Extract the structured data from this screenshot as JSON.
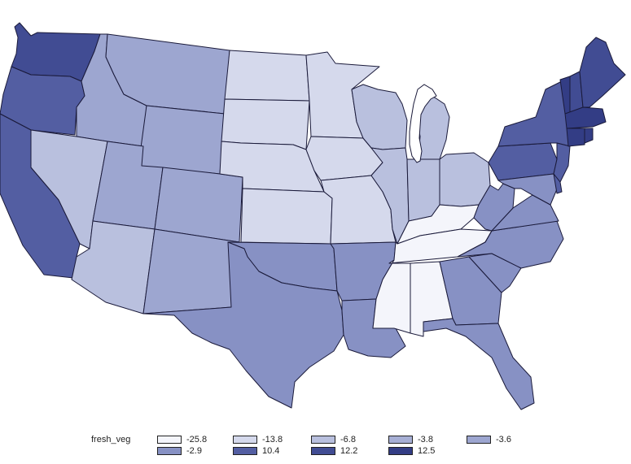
{
  "colors": {
    "background": "#ffffff",
    "outline": "#1a1a3a",
    "lake": "#ffffff"
  },
  "map": {
    "variable": "fresh_veg",
    "states": [
      {
        "code": "WA",
        "bin": "12.2"
      },
      {
        "code": "OR",
        "bin": "10.4"
      },
      {
        "code": "CA",
        "bin": "10.4"
      },
      {
        "code": "ID",
        "bin": "-3.6"
      },
      {
        "code": "NV",
        "bin": "-6.8"
      },
      {
        "code": "MT",
        "bin": "-3.6"
      },
      {
        "code": "WY",
        "bin": "-3.6"
      },
      {
        "code": "UT",
        "bin": "-3.6"
      },
      {
        "code": "AZ",
        "bin": "-6.8"
      },
      {
        "code": "CO",
        "bin": "-3.6"
      },
      {
        "code": "NM",
        "bin": "-3.6"
      },
      {
        "code": "ND",
        "bin": "-13.8"
      },
      {
        "code": "SD",
        "bin": "-13.8"
      },
      {
        "code": "NE",
        "bin": "-13.8"
      },
      {
        "code": "KS",
        "bin": "-13.8"
      },
      {
        "code": "OK",
        "bin": "-2.9"
      },
      {
        "code": "TX",
        "bin": "-2.9"
      },
      {
        "code": "MN",
        "bin": "-13.8"
      },
      {
        "code": "IA",
        "bin": "-13.8"
      },
      {
        "code": "MO",
        "bin": "-13.8"
      },
      {
        "code": "AR",
        "bin": "-2.9"
      },
      {
        "code": "LA",
        "bin": "-2.9"
      },
      {
        "code": "WI",
        "bin": "-6.8"
      },
      {
        "code": "IL",
        "bin": "-6.8"
      },
      {
        "code": "MI",
        "bin": "-6.8"
      },
      {
        "code": "IN",
        "bin": "-6.8"
      },
      {
        "code": "OH",
        "bin": "-6.8"
      },
      {
        "code": "KY",
        "bin": "-25.8"
      },
      {
        "code": "TN",
        "bin": "-25.8"
      },
      {
        "code": "MS",
        "bin": "-25.8"
      },
      {
        "code": "AL",
        "bin": "-25.8"
      },
      {
        "code": "GA",
        "bin": "-2.9"
      },
      {
        "code": "FL",
        "bin": "-2.9"
      },
      {
        "code": "SC",
        "bin": "-2.9"
      },
      {
        "code": "NC",
        "bin": "-2.9"
      },
      {
        "code": "VA",
        "bin": "-2.9"
      },
      {
        "code": "WV",
        "bin": "-2.9"
      },
      {
        "code": "PA",
        "bin": "10.4"
      },
      {
        "code": "NY",
        "bin": "10.4"
      },
      {
        "code": "NJ",
        "bin": "10.4"
      },
      {
        "code": "MD",
        "bin": "-2.9"
      },
      {
        "code": "DE",
        "bin": "10.4"
      },
      {
        "code": "VT",
        "bin": "12.5"
      },
      {
        "code": "NH",
        "bin": "12.2"
      },
      {
        "code": "ME",
        "bin": "12.2"
      },
      {
        "code": "MA",
        "bin": "12.5"
      },
      {
        "code": "CT",
        "bin": "12.5"
      },
      {
        "code": "RI",
        "bin": "12.5"
      }
    ]
  },
  "legend": {
    "title": "fresh_veg",
    "items": [
      {
        "label": "-25.8",
        "color": "#f4f5fb"
      },
      {
        "label": "-13.8",
        "color": "#d5d9ec"
      },
      {
        "label": "-6.8",
        "color": "#b9c0de"
      },
      {
        "label": "-3.8",
        "color": "#a7afd5"
      },
      {
        "label": "-3.6",
        "color": "#9da6d0"
      },
      {
        "label": "-2.9",
        "color": "#8791c4"
      },
      {
        "label": "10.4",
        "color": "#535ea2"
      },
      {
        "label": "12.2",
        "color": "#414c93"
      },
      {
        "label": "12.5",
        "color": "#333d85"
      }
    ]
  }
}
